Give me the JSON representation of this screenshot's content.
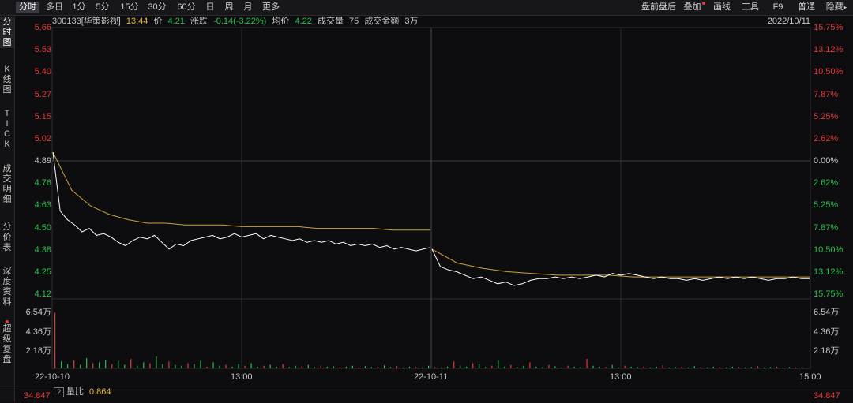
{
  "toolbar": {
    "left_items": [
      "分时",
      "多日",
      "1分",
      "5分",
      "15分",
      "30分",
      "60分",
      "日",
      "周",
      "月",
      "更多"
    ],
    "active": "分时",
    "right_items": [
      "盘前盘后",
      "叠加",
      "画线",
      "工具",
      "F9",
      "普通",
      "隐藏"
    ]
  },
  "sidebar": {
    "tabs": [
      {
        "label": "分\n时\n图",
        "active": true
      },
      {
        "label": "K\n线\n图",
        "active": false
      },
      {
        "label": "T\nI\nC\nK",
        "active": false
      },
      {
        "label": "成\n交\n明\n细",
        "active": false
      },
      {
        "label": "分\n价\n表",
        "active": false
      },
      {
        "label": "深\n度\n资\n料",
        "active": false
      },
      {
        "label": "超\n级\n复\n盘",
        "active": false
      }
    ]
  },
  "info": {
    "code_name": "300133[华策影视]",
    "time": "13:44",
    "price_label": "价",
    "price": "4.21",
    "change_label": "涨跌",
    "change": "-0.14(-3.22%)",
    "avg_label": "均价",
    "avg": "4.22",
    "volume_label": "成交量",
    "volume": "75",
    "amount_label": "成交金额",
    "amount": "3万",
    "date": "2022/10/11"
  },
  "indicator": {
    "label": "量比",
    "value": "0.864",
    "help": "?",
    "bottom_left": "34.847",
    "bottom_right": "34.847"
  },
  "colors": {
    "up": "#e5383b",
    "down": "#27c24c",
    "price_line": "#ffffff",
    "avg_line": "#c9a23a",
    "bg": "#0d0d0f"
  },
  "chart_data": {
    "type": "line",
    "price_axis": {
      "ticks": [
        "5.66",
        "5.53",
        "5.40",
        "5.27",
        "5.15",
        "5.02",
        "4.89",
        "4.76",
        "4.63",
        "4.50",
        "4.38",
        "4.25",
        "4.12"
      ],
      "ylim": [
        4.12,
        5.66
      ],
      "reference": 4.89
    },
    "percent_axis": {
      "ticks": [
        "15.75%",
        "13.12%",
        "10.50%",
        "7.87%",
        "5.25%",
        "2.62%",
        "0.00%",
        "2.62%",
        "5.25%",
        "7.87%",
        "10.50%",
        "13.12%",
        "15.75%"
      ]
    },
    "volume_axis": {
      "ticks": [
        "6.54万",
        "4.36万",
        "2.18万"
      ],
      "ylim": [
        0,
        65400
      ]
    },
    "x_labels": [
      "22-10-10",
      "13:00",
      "22-10-11",
      "13:00",
      "15:00"
    ],
    "series": [
      {
        "name": "价",
        "day1": [
          4.94,
          4.6,
          4.55,
          4.52,
          4.48,
          4.5,
          4.46,
          4.47,
          4.45,
          4.42,
          4.4,
          4.43,
          4.45,
          4.44,
          4.46,
          4.42,
          4.38,
          4.41,
          4.4,
          4.43,
          4.44,
          4.45,
          4.46,
          4.44,
          4.45,
          4.47,
          4.45,
          4.46,
          4.47,
          4.44,
          4.46,
          4.45,
          4.44,
          4.43,
          4.44,
          4.42,
          4.43,
          4.42,
          4.43,
          4.41,
          4.42,
          4.4,
          4.41,
          4.4,
          4.41,
          4.39,
          4.4,
          4.38,
          4.39,
          4.38,
          4.37,
          4.38,
          4.39
        ],
        "day2": [
          4.38,
          4.28,
          4.26,
          4.25,
          4.23,
          4.21,
          4.22,
          4.2,
          4.18,
          4.19,
          4.17,
          4.18,
          4.2,
          4.21,
          4.21,
          4.22,
          4.21,
          4.22,
          4.21,
          4.22,
          4.23,
          4.22,
          4.24,
          4.23,
          4.24,
          4.23,
          4.22,
          4.21,
          4.22,
          4.21,
          4.21,
          4.2,
          4.21,
          4.2,
          4.21,
          4.22,
          4.21,
          4.22,
          4.21,
          4.22,
          4.21,
          4.2,
          4.21,
          4.21,
          4.22,
          4.21,
          4.21
        ]
      },
      {
        "name": "均价",
        "day1": [
          4.94,
          4.72,
          4.63,
          4.58,
          4.55,
          4.53,
          4.53,
          4.52,
          4.52,
          4.52,
          4.51,
          4.51,
          4.51,
          4.51,
          4.5,
          4.5,
          4.5,
          4.5,
          4.49,
          4.49,
          4.49
        ],
        "day2": [
          4.38,
          4.3,
          4.27,
          4.25,
          4.24,
          4.23,
          4.23,
          4.23,
          4.22,
          4.22,
          4.22,
          4.22,
          4.22,
          4.22,
          4.22,
          4.22
        ]
      }
    ],
    "volume": [
      65000,
      8000,
      5000,
      9000,
      4000,
      12000,
      6000,
      7000,
      10000,
      5000,
      9000,
      4000,
      11000,
      3000,
      7000,
      6000,
      14000,
      5000,
      8000,
      4000,
      3000,
      6000,
      5000,
      9000,
      2000,
      7000,
      3000,
      4000,
      2000,
      5000,
      3000,
      6000,
      2000,
      3000,
      4000,
      2000,
      5000,
      1500,
      3000,
      2500,
      4000,
      1500,
      3000,
      2000,
      2500,
      1500,
      2000,
      3000,
      1000,
      2500,
      1500,
      2000,
      3500,
      1500,
      2500,
      1000,
      2000,
      1500,
      1000,
      3000,
      1500,
      1000,
      2000,
      8000,
      3000,
      2000,
      6000,
      5000,
      1500,
      3000,
      9000,
      2000,
      4000,
      1500,
      3000,
      7000,
      2000,
      1500,
      4000,
      2500,
      1000,
      3000,
      2000,
      1500,
      11000,
      3000,
      2000,
      1500,
      4000,
      1000,
      3000,
      2000,
      1500,
      2500,
      1000,
      2000,
      3500,
      1000,
      1500,
      2000,
      1000,
      2500,
      1500,
      1000,
      2000,
      1500,
      1000,
      2000,
      1500,
      1000,
      1500,
      2500,
      1000,
      1500,
      2000,
      1000,
      1500,
      1000,
      1500
    ]
  }
}
